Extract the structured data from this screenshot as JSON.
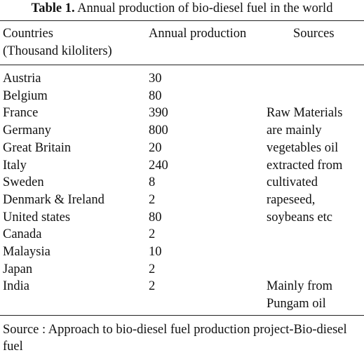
{
  "caption": {
    "label": "Table 1.",
    "text": "Annual production of bio-diesel fuel in the world"
  },
  "header": {
    "country": [
      "Countries",
      "(Thousand kiloliters)"
    ],
    "production": "Annual production",
    "sources": "Sources"
  },
  "rows": [
    {
      "country": "Austria",
      "production": 30
    },
    {
      "country": "Belgium",
      "production": 80
    },
    {
      "country": "France",
      "production": 390
    },
    {
      "country": "Germany",
      "production": 800
    },
    {
      "country": "Great Britain",
      "production": 20
    },
    {
      "country": "Italy",
      "production": 240
    },
    {
      "country": "Sweden",
      "production": 8
    },
    {
      "country": "Denmark & Ireland",
      "production": 2
    },
    {
      "country": "United states",
      "production": 80
    },
    {
      "country": "Canada",
      "production": 2
    },
    {
      "country": "Malaysia",
      "production": 10
    },
    {
      "country": "Japan",
      "production": 2
    },
    {
      "country": "India",
      "production": 2
    }
  ],
  "sources": [
    [
      "Raw Materials",
      "are mainly",
      "vegetables oil",
      "extracted from",
      "cultivated",
      "rapeseed,",
      "soybeans etc"
    ],
    [
      "Mainly from",
      "Pungam oil"
    ]
  ],
  "footer": "Source : Approach to bio-diesel fuel production project-Bio-diesel fuel"
}
